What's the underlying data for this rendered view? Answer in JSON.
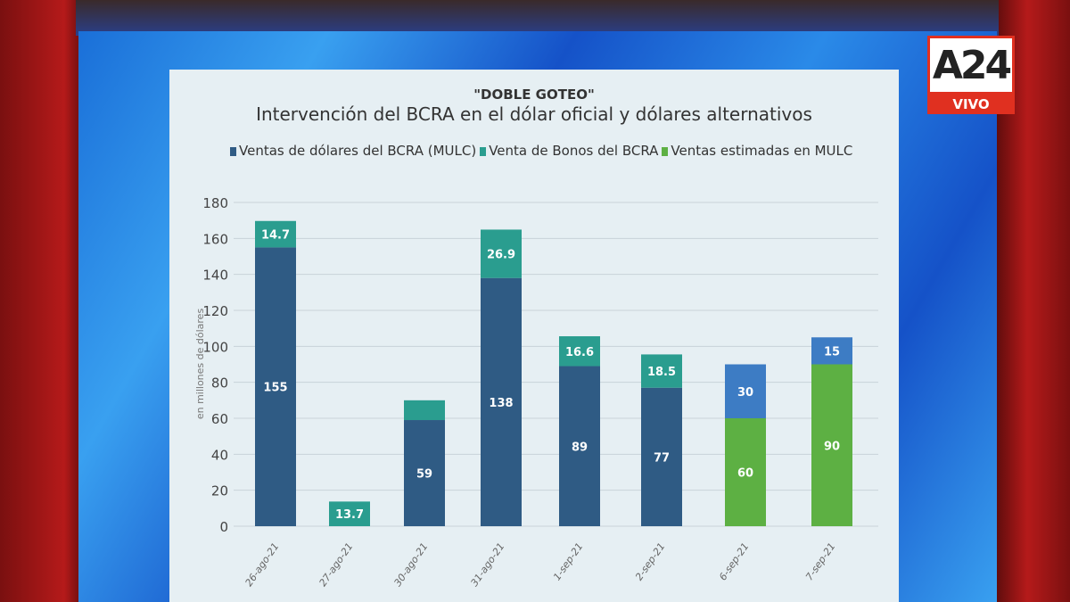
{
  "broadcast": {
    "logo": "A24",
    "live_label": "VIVO"
  },
  "colors": {
    "mulc": "#2f5b84",
    "mulc_est": "#3d7cc4",
    "bonos": "#2a9d8f",
    "estimadas": "#5db043"
  },
  "chart_data": {
    "type": "bar",
    "stacked": true,
    "supertitle": "\"DOBLE GOTEO\"",
    "title": "Intervención del BCRA en el dólar oficial y dólares alternativos",
    "ylabel": "en millones de dólares",
    "ylim": [
      0,
      180
    ],
    "yticks": [
      0,
      20,
      40,
      60,
      80,
      100,
      120,
      140,
      160,
      180
    ],
    "grid": true,
    "legend_position": "top",
    "categories": [
      "26-ago-21",
      "27-ago-21",
      "30-ago-21",
      "31-ago-21",
      "1-sep-21",
      "2-sep-21",
      "6-sep-21",
      "7-sep-21"
    ],
    "series": [
      {
        "name": "Ventas estimadas en MULC",
        "values": [
          0,
          0,
          0,
          0,
          0,
          0,
          60,
          90
        ],
        "labels": [
          "",
          "",
          "",
          "",
          "",
          "",
          "60",
          "90"
        ]
      },
      {
        "name": "Ventas de dólares del BCRA (MULC)",
        "values": [
          155,
          0,
          59,
          138,
          89,
          77,
          30,
          15
        ],
        "labels": [
          "155",
          "",
          "59",
          "138",
          "89",
          "77",
          "30",
          "15"
        ]
      },
      {
        "name": "Venta de Bonos del BCRA",
        "values": [
          14.7,
          13.7,
          11,
          26.9,
          16.6,
          18.5,
          0,
          0
        ],
        "labels": [
          "14.7",
          "13.7",
          "",
          "26.9",
          "16.6",
          "18.5",
          "",
          ""
        ]
      }
    ]
  }
}
